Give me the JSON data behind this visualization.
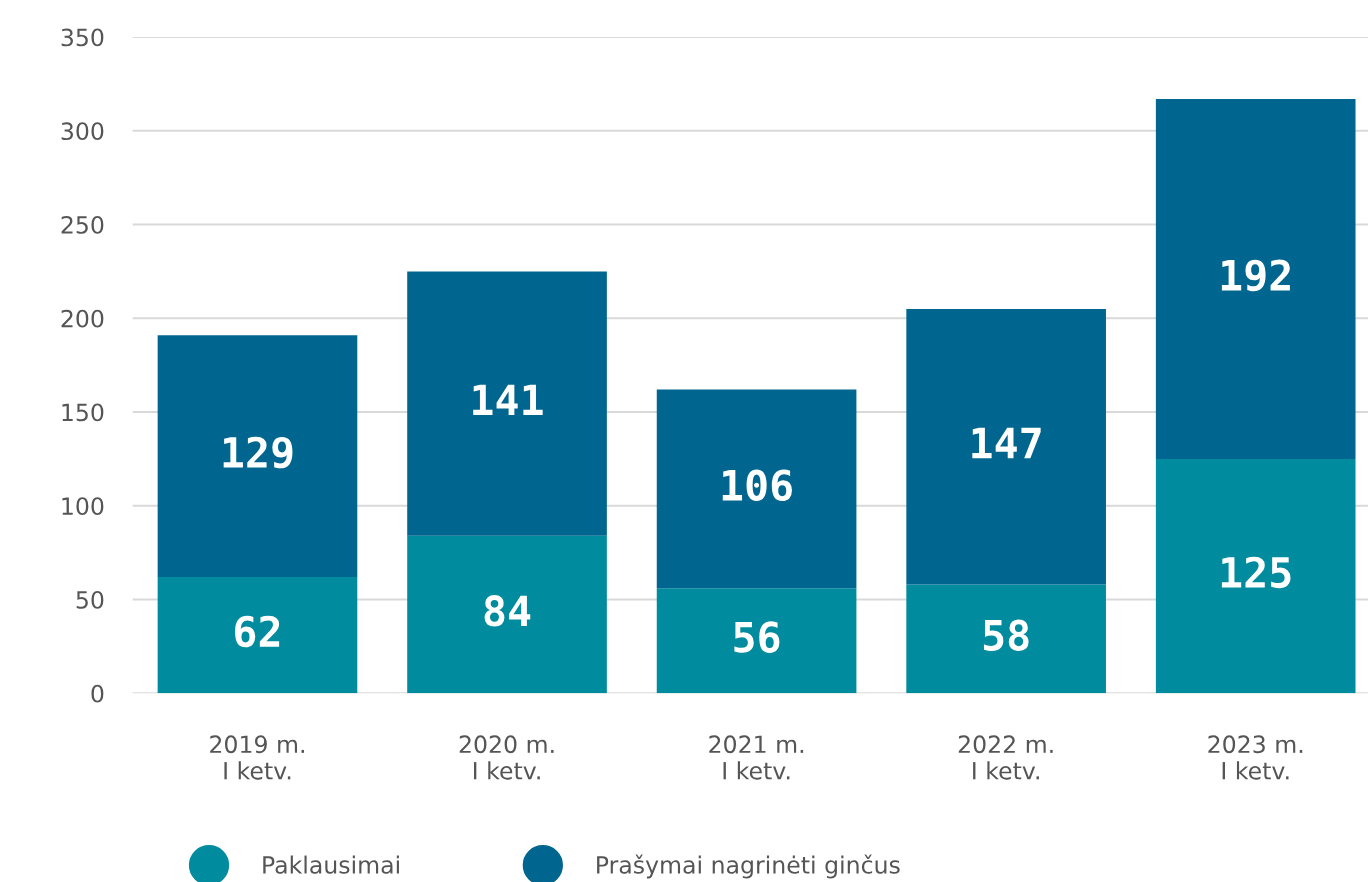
{
  "chart_data": {
    "type": "bar",
    "stacked": true,
    "categories": [
      "2019 m.\nI ketv.",
      "2020 m.\nI ketv.",
      "2021 m.\nI ketv.",
      "2022 m.\nI ketv.",
      "2023 m.\nI ketv."
    ],
    "series": [
      {
        "name": "Paklausimai",
        "color": "#008c9e",
        "values": [
          62,
          84,
          56,
          58,
          125
        ]
      },
      {
        "name": "Prašymai nagrinėti ginčus",
        "color": "#00668f",
        "values": [
          129,
          141,
          106,
          147,
          192
        ]
      }
    ],
    "ylim": [
      0,
      350
    ],
    "yticks": [
      0,
      50,
      100,
      150,
      200,
      250,
      300,
      350
    ],
    "grid": "y",
    "legend": "bottom",
    "data_labels": true
  }
}
